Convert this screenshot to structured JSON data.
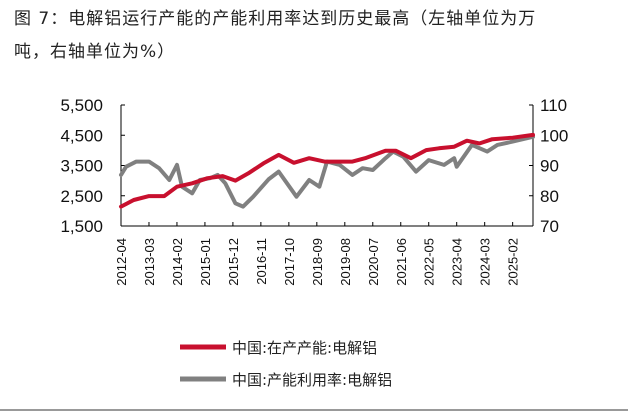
{
  "title_line1": "图 7：电解铝运行产能的产能利用率达到历史最高（左轴单位为万",
  "title_line2": "吨，右轴单位为%）",
  "chart_data": {
    "type": "line",
    "title": "电解铝运行产能的产能利用率达到历史最高",
    "x_unit": "months since 2012-04",
    "x_tick_labels": [
      "2012-04",
      "2013-03",
      "2014-02",
      "2015-01",
      "2015-12",
      "2016-11",
      "2017-10",
      "2018-09",
      "2019-08",
      "2020-07",
      "2021-06",
      "2022-05",
      "2023-04",
      "2024-03",
      "2025-02"
    ],
    "x_tick_step_months": 11,
    "xlim": [
      0,
      162
    ],
    "y_left": {
      "label": "万吨",
      "ticks": [
        "1,500",
        "2,500",
        "3,500",
        "4,500",
        "5,500"
      ],
      "lim": [
        1500,
        5500
      ]
    },
    "y_right": {
      "label": "%",
      "ticks": [
        "70",
        "80",
        "90",
        "100",
        "110"
      ],
      "lim": [
        70,
        110
      ]
    },
    "grid": false,
    "legend_position": "bottom",
    "series": [
      {
        "name": "中国:在产产能:电解铝",
        "axis": "left",
        "color": "#c8102e",
        "x": [
          0,
          5,
          11,
          17,
          22,
          28,
          34,
          40,
          45,
          50,
          56,
          62,
          68,
          74,
          80,
          86,
          91,
          96,
          104,
          108,
          114,
          120,
          125,
          131,
          136,
          141,
          146,
          154,
          162
        ],
        "values": [
          2140,
          2360,
          2490,
          2490,
          2800,
          2910,
          3080,
          3150,
          3000,
          3240,
          3570,
          3850,
          3590,
          3740,
          3630,
          3630,
          3630,
          3740,
          3990,
          3990,
          3740,
          4010,
          4070,
          4120,
          4320,
          4230,
          4370,
          4420,
          4510
        ]
      },
      {
        "name": "中国:产能利用率:电解铝",
        "axis": "right",
        "color": "#808080",
        "x": [
          0,
          2,
          6,
          11,
          15,
          19,
          22,
          24,
          28,
          31,
          35,
          38,
          41,
          45,
          48,
          52,
          58,
          62,
          69,
          74,
          78,
          81,
          86,
          91,
          95,
          99,
          104,
          107,
          111,
          116,
          121,
          127,
          131,
          132,
          138,
          144,
          148,
          154,
          162
        ],
        "values": [
          86.9,
          89.6,
          91.3,
          91.3,
          89.1,
          85.2,
          90.2,
          83.0,
          80.8,
          85.2,
          85.8,
          86.9,
          84.1,
          77.5,
          76.4,
          79.7,
          85.4,
          88.0,
          79.7,
          85.2,
          83.0,
          91.3,
          90.2,
          86.9,
          89.1,
          88.5,
          92.4,
          94.6,
          92.9,
          88.0,
          91.8,
          90.2,
          92.4,
          89.6,
          96.8,
          94.6,
          96.8,
          97.9,
          99.5
        ]
      }
    ]
  }
}
